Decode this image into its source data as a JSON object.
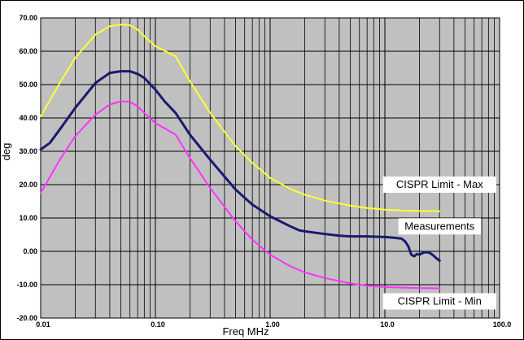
{
  "chart_data": {
    "type": "line",
    "xlabel": "Freq MHz",
    "ylabel": "deg",
    "xscale": "log",
    "xlim": [
      0.01,
      100
    ],
    "ylim": [
      -20,
      70
    ],
    "grid": true,
    "plot_background": "#c0c0c0",
    "y_ticks": [
      "70.00",
      "60.00",
      "50.00",
      "40.00",
      "30.00",
      "20.00",
      "10.00",
      "0.00",
      "-10.00",
      "-20.00"
    ],
    "x_ticks": [
      "0.01",
      "0.10",
      "1.00",
      "10.0",
      "100.0"
    ],
    "series": [
      {
        "name": "CISPR Limit - Max",
        "color": "#ffff33",
        "x": [
          0.01,
          0.015,
          0.02,
          0.03,
          0.04,
          0.05,
          0.06,
          0.07,
          0.08,
          0.1,
          0.15,
          0.2,
          0.3,
          0.5,
          0.7,
          1.0,
          1.5,
          2.0,
          3.0,
          5.0,
          7.0,
          10.0,
          15.0,
          20.0,
          30.0
        ],
        "values": [
          40.5,
          51,
          58,
          65,
          67.5,
          68,
          67.8,
          66.5,
          64.5,
          61.5,
          58.5,
          51,
          41.5,
          31.5,
          26.5,
          22,
          18.7,
          17,
          15.2,
          13.7,
          13,
          12.5,
          12.2,
          12.1,
          12
        ]
      },
      {
        "name": "Measurements",
        "color": "#1a1a6e",
        "x": [
          0.01,
          0.012,
          0.015,
          0.02,
          0.03,
          0.04,
          0.05,
          0.06,
          0.07,
          0.08,
          0.1,
          0.12,
          0.15,
          0.2,
          0.3,
          0.5,
          0.7,
          1.0,
          1.5,
          1.8,
          2.0,
          3.0,
          4.0,
          5.0,
          7.0,
          10.0,
          12.0,
          14.0,
          15.0,
          16.0,
          17.0,
          18.0,
          19.0,
          20.0,
          22.0,
          24.0,
          26.0,
          28.0,
          30.0
        ],
        "values": [
          30.5,
          32.5,
          37,
          43,
          50.5,
          53.5,
          54,
          54,
          53.2,
          52,
          48.5,
          45,
          41.5,
          35,
          27.5,
          18.5,
          14,
          10.5,
          7.5,
          6.3,
          6,
          5.2,
          4.7,
          4.5,
          4.5,
          4.3,
          4.1,
          3.8,
          3.0,
          1.5,
          -1.0,
          -1.5,
          -0.8,
          -1.0,
          -0.3,
          -0.3,
          -1.0,
          -2.0,
          -2.8
        ]
      },
      {
        "name": "CISPR Limit - Min",
        "color": "#ff33ff",
        "x": [
          0.01,
          0.015,
          0.02,
          0.03,
          0.04,
          0.05,
          0.06,
          0.07,
          0.08,
          0.1,
          0.15,
          0.2,
          0.3,
          0.5,
          0.7,
          1.0,
          1.5,
          2.0,
          3.0,
          5.0,
          7.0,
          10.0,
          15.0,
          20.0,
          30.0
        ],
        "values": [
          17.5,
          28,
          34.5,
          41,
          44,
          45,
          44.8,
          43.5,
          41.5,
          38.5,
          35,
          28,
          19,
          9,
          3.5,
          -1,
          -4.5,
          -6.3,
          -8,
          -9.6,
          -10.3,
          -10.7,
          -10.9,
          -11,
          -11.1
        ]
      }
    ],
    "legend": [
      {
        "label": "CISPR Limit - Max",
        "anchor_x": 30.0,
        "anchor_y": 20.0
      },
      {
        "label": "Measurements",
        "anchor_x": 30.0,
        "anchor_y": 7.5
      },
      {
        "label": "CISPR Limit - Min",
        "anchor_x": 30.0,
        "anchor_y": -15.0
      }
    ]
  }
}
